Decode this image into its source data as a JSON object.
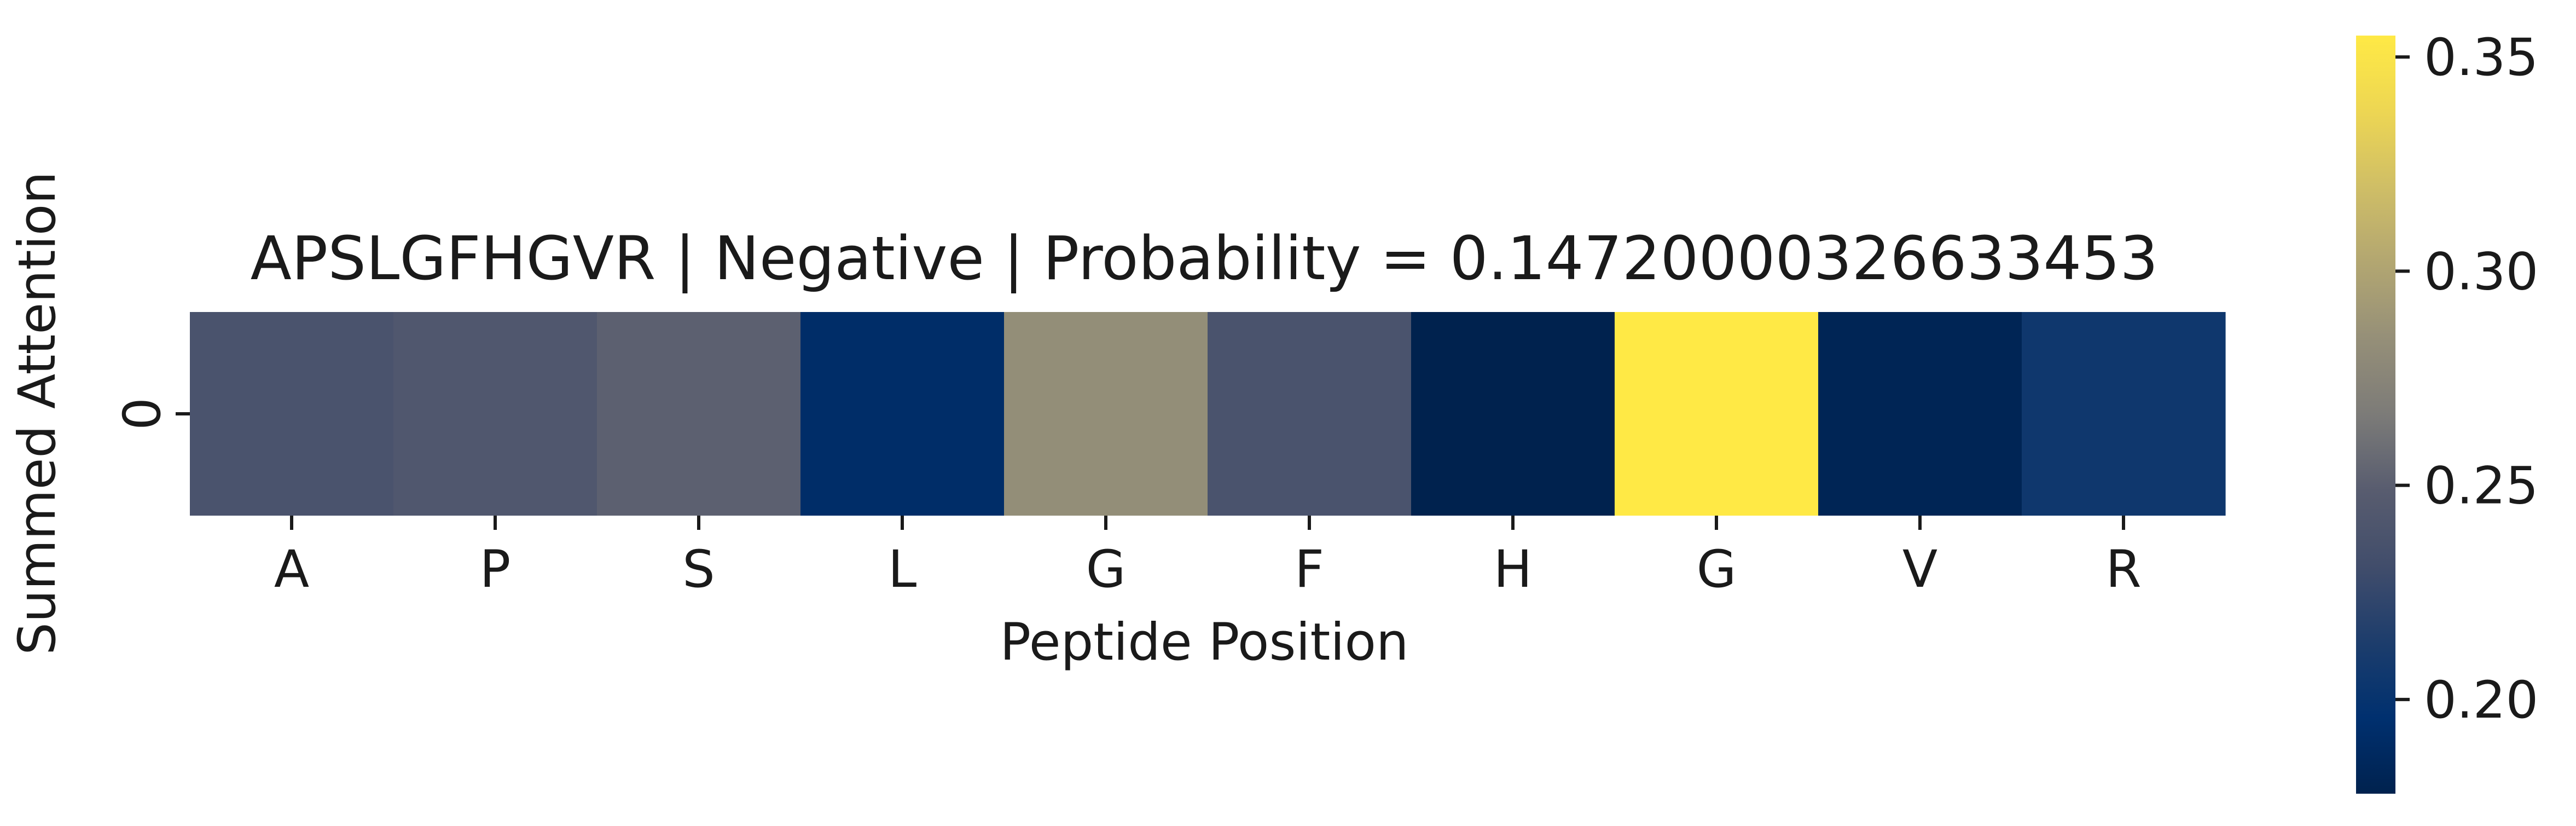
{
  "chart_data": {
    "type": "heatmap",
    "title": "APSLGFHGVR | Negative | Probability = 0.14720000326633453",
    "xlabel": "Peptide Position",
    "ylabel": "Summed Attention",
    "x_tick_labels": [
      "A",
      "P",
      "S",
      "L",
      "G",
      "F",
      "H",
      "G",
      "V",
      "R"
    ],
    "y_tick_labels": [
      "0"
    ],
    "values": [
      [
        0.238,
        0.243,
        0.251,
        0.192,
        0.283,
        0.238,
        0.178,
        0.355,
        0.182,
        0.205
      ]
    ],
    "colormap": "cividis",
    "colorbar": {
      "range": [
        0.178,
        0.355
      ],
      "ticks": [
        0.2,
        0.25,
        0.3,
        0.35
      ],
      "tick_labels": [
        "0.20",
        "0.25",
        "0.30",
        "0.35"
      ]
    },
    "grid": false,
    "legend": "none"
  }
}
